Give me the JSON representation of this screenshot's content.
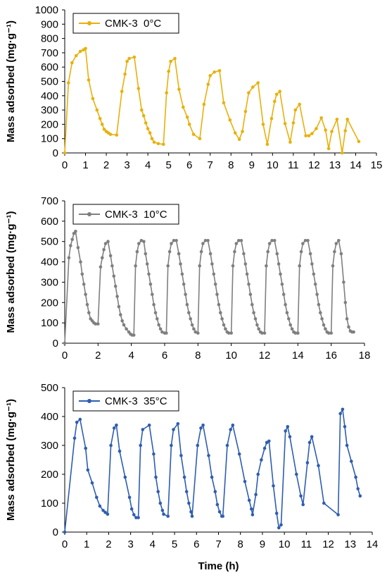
{
  "chart_data": [
    {
      "type": "line",
      "xlabel": "",
      "ylabel": "Mass adsorbed (mg·g⁻¹)",
      "xlim": [
        0,
        15
      ],
      "xstep": 1,
      "ylim": [
        0,
        1000
      ],
      "ystep": 100,
      "grid": false,
      "legend_position": "top-left",
      "series": [
        {
          "name": "CMK-3  0°C",
          "color": "#E8B00C",
          "x": [
            0,
            0.18,
            0.35,
            0.55,
            0.75,
            0.9,
            1.0,
            1.15,
            1.35,
            1.55,
            1.7,
            1.8,
            1.9,
            2.0,
            2.1,
            2.2,
            2.5,
            2.75,
            2.9,
            3.0,
            3.1,
            3.35,
            3.55,
            3.7,
            3.8,
            3.9,
            4.0,
            4.1,
            4.2,
            4.3,
            4.5,
            4.75,
            4.9,
            5.0,
            5.1,
            5.3,
            5.5,
            5.7,
            5.9,
            6.0,
            6.2,
            6.5,
            6.7,
            6.9,
            7.0,
            7.2,
            7.45,
            7.65,
            7.95,
            8.2,
            8.4,
            8.55,
            8.7,
            8.85,
            9.05,
            9.3,
            9.55,
            9.75,
            9.95,
            10.1,
            10.2,
            10.35,
            10.6,
            10.85,
            11.0,
            11.1,
            11.3,
            11.6,
            11.75,
            11.9,
            12.1,
            12.35,
            12.55,
            12.7,
            12.85,
            13.1,
            13.35,
            13.5,
            13.6,
            14.15
          ],
          "values": [
            0,
            490,
            630,
            680,
            710,
            720,
            730,
            510,
            380,
            300,
            240,
            200,
            165,
            150,
            140,
            130,
            125,
            430,
            550,
            640,
            660,
            670,
            450,
            300,
            260,
            210,
            170,
            140,
            100,
            75,
            65,
            60,
            420,
            570,
            640,
            660,
            445,
            320,
            250,
            200,
            130,
            100,
            340,
            480,
            540,
            565,
            575,
            350,
            230,
            140,
            95,
            150,
            290,
            420,
            460,
            490,
            200,
            60,
            240,
            360,
            410,
            430,
            205,
            75,
            210,
            300,
            340,
            120,
            120,
            135,
            170,
            245,
            160,
            30,
            150,
            235,
            0,
            155,
            235,
            80
          ]
        }
      ]
    },
    {
      "type": "line",
      "xlabel": "",
      "ylabel": "Mass adsorbed (mg·g⁻¹)",
      "xlim": [
        0,
        18
      ],
      "xstep": 2,
      "ylim": [
        0,
        700
      ],
      "ystep": 100,
      "grid": false,
      "legend_position": "top-left",
      "series": [
        {
          "name": "CMK-3  10°C",
          "color": "#7F7F7F",
          "x": [
            0,
            0.25,
            0.35,
            0.45,
            0.55,
            0.65,
            0.8,
            0.95,
            1.05,
            1.15,
            1.25,
            1.35,
            1.45,
            1.55,
            1.65,
            1.75,
            1.85,
            2.0,
            2.15,
            2.25,
            2.35,
            2.45,
            2.6,
            2.75,
            2.85,
            2.95,
            3.05,
            3.15,
            3.25,
            3.35,
            3.45,
            3.55,
            3.7,
            3.85,
            3.95,
            4.05,
            4.15,
            4.25,
            4.35,
            4.45,
            4.6,
            4.75,
            4.85,
            4.95,
            5.05,
            5.15,
            5.25,
            5.35,
            5.45,
            5.55,
            5.65,
            5.75,
            5.85,
            6.0,
            6.1,
            6.2,
            6.3,
            6.4,
            6.55,
            6.7,
            6.85
          ],
          "values": [
            0,
            420,
            480,
            510,
            540,
            550,
            470,
            400,
            340,
            290,
            240,
            190,
            150,
            120,
            110,
            100,
            95,
            95,
            375,
            420,
            460,
            490,
            500,
            430,
            380,
            330,
            280,
            230,
            180,
            140,
            110,
            90,
            70,
            55,
            45,
            40,
            40,
            380,
            450,
            490,
            505,
            500,
            440,
            390,
            340,
            290,
            240,
            190,
            150,
            120,
            90,
            70,
            55,
            50,
            50,
            380,
            450,
            490,
            505,
            505,
            440
          ]
        },
        {
          "name": "",
          "color": "#7F7F7F",
          "x": [
            6.85,
            6.95,
            7.05,
            7.15,
            7.25,
            7.35,
            7.45,
            7.55,
            7.65,
            7.75,
            7.85,
            8.0,
            8.1,
            8.2,
            8.3,
            8.45,
            8.6,
            8.75,
            8.85,
            8.95,
            9.05,
            9.15,
            9.25,
            9.35,
            9.45,
            9.55,
            9.65,
            9.75,
            9.85,
            10.0,
            10.1,
            10.2,
            10.3,
            10.45,
            10.6,
            10.75,
            10.85,
            10.95,
            11.05,
            11.15,
            11.25,
            11.35,
            11.45,
            11.55,
            11.65,
            11.75,
            11.85,
            12.0,
            12.1,
            12.2,
            12.3,
            12.45,
            12.6,
            12.75,
            12.85,
            12.95,
            13.05,
            13.15,
            13.25,
            13.35,
            13.45,
            13.55,
            13.65,
            13.75,
            13.85,
            14.0
          ],
          "values": [
            440,
            390,
            340,
            290,
            240,
            190,
            150,
            120,
            90,
            70,
            55,
            50,
            380,
            450,
            490,
            505,
            505,
            440,
            390,
            340,
            290,
            240,
            190,
            150,
            120,
            90,
            70,
            55,
            50,
            50,
            380,
            450,
            490,
            505,
            505,
            440,
            390,
            340,
            290,
            240,
            190,
            150,
            120,
            90,
            70,
            55,
            50,
            50,
            380,
            450,
            490,
            505,
            505,
            440,
            390,
            340,
            290,
            240,
            190,
            150,
            120,
            90,
            70,
            55,
            50,
            50
          ]
        },
        {
          "name": "",
          "color": "#7F7F7F",
          "x": [
            14.0,
            14.1,
            14.2,
            14.3,
            14.45,
            14.6,
            14.75,
            14.85,
            14.95,
            15.05,
            15.15,
            15.25,
            15.35,
            15.45,
            15.55,
            15.65,
            15.75,
            15.85,
            16.0,
            16.1,
            16.2,
            16.3,
            16.45,
            16.6,
            16.75,
            16.85,
            16.95,
            17.05,
            17.15,
            17.25,
            17.35
          ],
          "values": [
            50,
            380,
            450,
            490,
            505,
            505,
            440,
            390,
            340,
            290,
            240,
            190,
            150,
            120,
            90,
            70,
            55,
            50,
            50,
            380,
            450,
            490,
            505,
            440,
            300,
            200,
            120,
            80,
            60,
            55,
            55
          ]
        }
      ]
    },
    {
      "type": "line",
      "xlabel": "Time (h)",
      "ylabel": "Mass adsorbed (mg·g⁻¹)",
      "xlim": [
        0,
        14
      ],
      "xstep": 1,
      "ylim": [
        0,
        500
      ],
      "ystep": 100,
      "grid": false,
      "legend_position": "top-left",
      "series": [
        {
          "name": "CMK-3  35°C",
          "color": "#2E5DB2",
          "x": [
            0,
            0.45,
            0.55,
            0.7,
            0.95,
            1.05,
            1.25,
            1.45,
            1.6,
            1.75,
            1.85,
            1.95,
            2.1,
            2.25,
            2.35,
            2.5,
            2.75,
            2.95,
            3.05,
            3.15,
            3.25,
            3.35,
            3.45,
            3.55,
            3.85,
            4.05,
            4.15,
            4.25,
            4.35,
            4.45,
            4.5,
            4.7,
            4.85,
            4.95,
            5.15,
            5.3,
            5.45,
            5.55,
            5.65,
            5.75,
            5.8,
            6.05,
            6.2,
            6.3,
            6.55,
            6.7,
            6.85,
            6.95,
            7.05,
            7.15,
            7.2,
            7.4,
            7.55,
            7.65,
            7.95,
            8.2,
            8.4,
            8.5,
            8.55,
            8.7,
            8.8,
            8.95,
            9.1,
            9.2
          ],
          "values": [
            0,
            325,
            380,
            390,
            290,
            215,
            170,
            120,
            90,
            75,
            68,
            62,
            300,
            360,
            370,
            280,
            190,
            120,
            80,
            60,
            50,
            50,
            300,
            355,
            370,
            270,
            190,
            140,
            100,
            75,
            62,
            55,
            300,
            355,
            375,
            265,
            190,
            140,
            100,
            70,
            55,
            300,
            360,
            370,
            265,
            190,
            140,
            95,
            70,
            55,
            55,
            300,
            355,
            370,
            270,
            175,
            110,
            80,
            60,
            130,
            200,
            250,
            290,
            310
          ]
        },
        {
          "name": "",
          "color": "#2E5DB2",
          "x": [
            9.2,
            9.3,
            9.5,
            9.65,
            9.75,
            9.85,
            10.05,
            10.15,
            10.25,
            10.55,
            10.75,
            10.85,
            11.05,
            11.15,
            11.25,
            11.55,
            11.8,
            12.45,
            12.55,
            12.65,
            12.75,
            12.85,
            13.05,
            13.25,
            13.35,
            13.45
          ],
          "values": [
            310,
            315,
            160,
            65,
            15,
            25,
            350,
            365,
            330,
            200,
            125,
            95,
            240,
            310,
            330,
            230,
            100,
            60,
            410,
            425,
            365,
            300,
            245,
            190,
            150,
            125
          ]
        }
      ]
    }
  ]
}
